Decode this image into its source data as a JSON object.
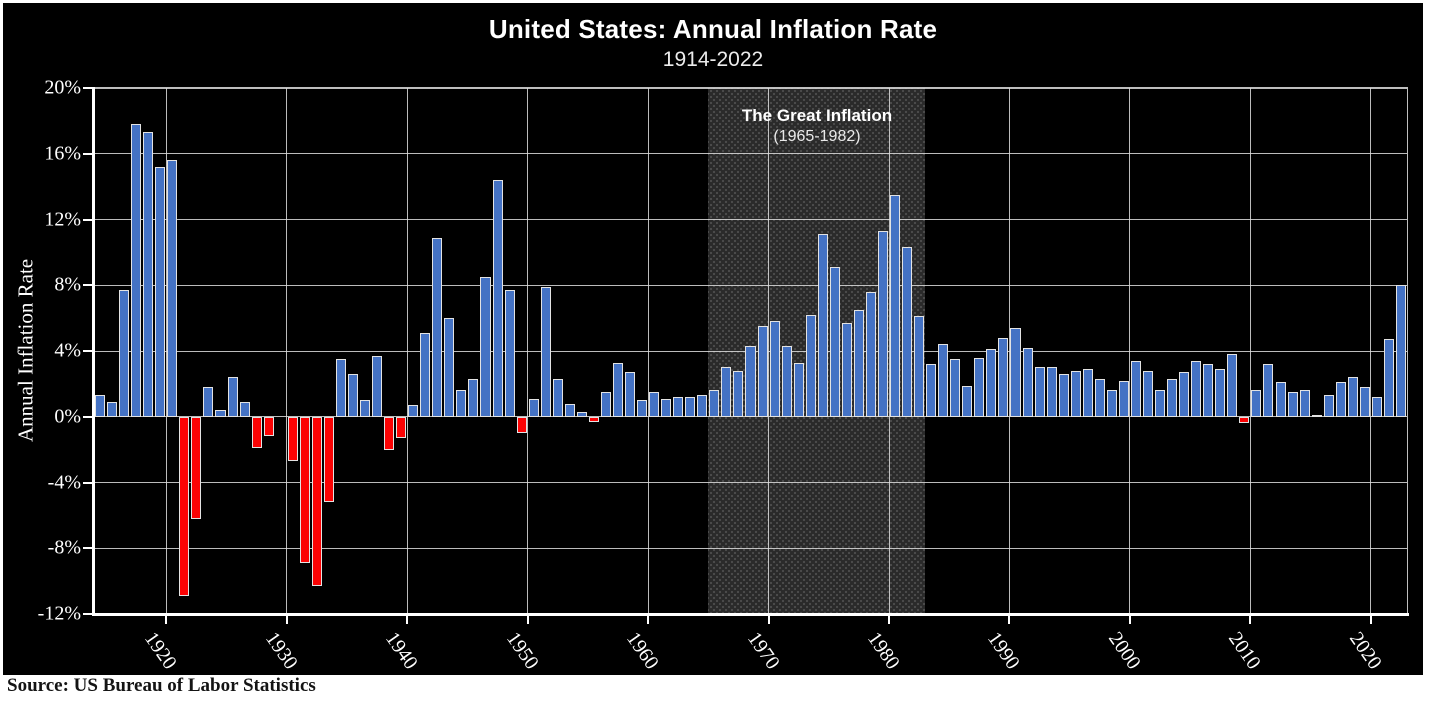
{
  "chart_data": {
    "type": "bar",
    "title": "United States: Annual Inflation Rate",
    "subtitle": "1914-2022",
    "ylabel": "Annual Inflation Rate",
    "source": "Source: US Bureau of Labor Statistics",
    "units": "%",
    "ylim": [
      -12,
      20
    ],
    "ytick_labels": [
      "20%",
      "16%",
      "12%",
      "8%",
      "4%",
      "0%",
      "-4%",
      "-8%",
      "-12%"
    ],
    "xtick_labels": [
      "1920",
      "1930",
      "1940",
      "1950",
      "1960",
      "1970",
      "1980",
      "1990",
      "2000",
      "2010",
      "2020"
    ],
    "grid": true,
    "years": [
      1914,
      1915,
      1916,
      1917,
      1918,
      1919,
      1920,
      1921,
      1922,
      1923,
      1924,
      1925,
      1926,
      1927,
      1928,
      1929,
      1930,
      1931,
      1932,
      1933,
      1934,
      1935,
      1936,
      1937,
      1938,
      1939,
      1940,
      1941,
      1942,
      1943,
      1944,
      1945,
      1946,
      1947,
      1948,
      1949,
      1950,
      1951,
      1952,
      1953,
      1954,
      1955,
      1956,
      1957,
      1958,
      1959,
      1960,
      1961,
      1962,
      1963,
      1964,
      1965,
      1966,
      1967,
      1968,
      1969,
      1970,
      1971,
      1972,
      1973,
      1974,
      1975,
      1976,
      1977,
      1978,
      1979,
      1980,
      1981,
      1982,
      1983,
      1984,
      1985,
      1986,
      1987,
      1988,
      1989,
      1990,
      1991,
      1992,
      1993,
      1994,
      1995,
      1996,
      1997,
      1998,
      1999,
      2000,
      2001,
      2002,
      2003,
      2004,
      2005,
      2006,
      2007,
      2008,
      2009,
      2010,
      2011,
      2012,
      2013,
      2014,
      2015,
      2016,
      2017,
      2018,
      2019,
      2020,
      2021,
      2022
    ],
    "values": [
      1.3,
      0.9,
      7.7,
      17.8,
      17.3,
      15.2,
      15.6,
      -10.9,
      -6.2,
      1.8,
      0.4,
      2.4,
      0.9,
      -1.9,
      -1.2,
      0.0,
      -2.7,
      -8.9,
      -10.3,
      -5.2,
      3.5,
      2.6,
      1.0,
      3.7,
      -2.0,
      -1.3,
      0.7,
      5.1,
      10.9,
      6.0,
      1.6,
      2.3,
      8.5,
      14.4,
      7.7,
      -1.0,
      1.1,
      7.9,
      2.3,
      0.8,
      0.3,
      -0.3,
      1.5,
      3.3,
      2.7,
      1.0,
      1.5,
      1.1,
      1.2,
      1.2,
      1.3,
      1.6,
      3.0,
      2.8,
      4.3,
      5.5,
      5.8,
      4.3,
      3.3,
      6.2,
      11.1,
      9.1,
      5.7,
      6.5,
      7.6,
      11.3,
      13.5,
      10.3,
      6.1,
      3.2,
      4.4,
      3.5,
      1.9,
      3.6,
      4.1,
      4.8,
      5.4,
      4.2,
      3.0,
      3.0,
      2.6,
      2.8,
      2.9,
      2.3,
      1.6,
      2.2,
      3.4,
      2.8,
      1.6,
      2.3,
      2.7,
      3.4,
      3.2,
      2.9,
      3.8,
      -0.4,
      1.6,
      3.2,
      2.1,
      1.5,
      1.6,
      0.1,
      1.3,
      2.1,
      2.4,
      1.8,
      1.2,
      4.7,
      8.0
    ],
    "highlight_band": {
      "label": "The Great Inflation",
      "sublabel": "(1965-1982)",
      "start_year": 1965,
      "end_year": 1982
    },
    "colors": {
      "positive_bar": "#4472C4",
      "negative_bar": "#FB0304",
      "bar_border": "#E3E3E3",
      "panel_background": "#000000",
      "page_background": "#FFFFFF",
      "band_background": "#2A2A2A",
      "gridline": "#DDDDDD",
      "text": "#FFFFFF",
      "source_text": "#141414"
    }
  }
}
